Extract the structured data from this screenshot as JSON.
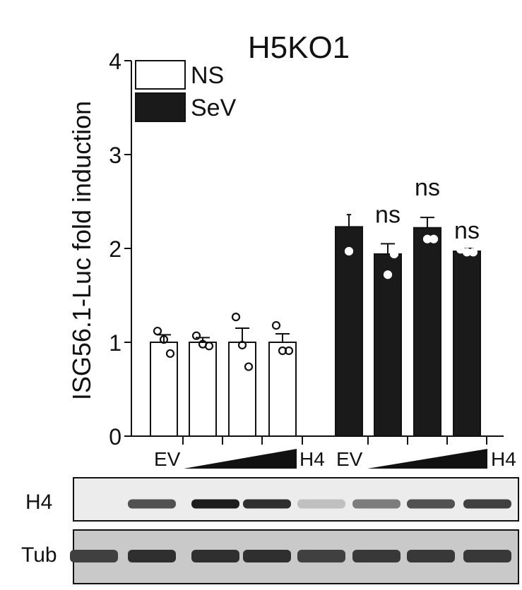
{
  "chart_data": {
    "type": "bar",
    "title": "H5KO1",
    "ylabel": "ISG56.1-Luc fold induction",
    "ylim": [
      0,
      4
    ],
    "yticks": [
      0,
      1,
      2,
      3,
      4
    ],
    "groups": [
      {
        "first_label": "EV",
        "wedge_label": "H4"
      },
      {
        "first_label": "EV",
        "wedge_label": "H4"
      }
    ],
    "legend": {
      "position": "top-left"
    },
    "series": [
      {
        "name": "NS",
        "color": "#ffffff",
        "values": [
          1.0,
          1.0,
          1.0,
          1.0
        ],
        "errors": [
          0.08,
          0.05,
          0.15,
          0.09
        ],
        "points": [
          [
            1.12,
            0.88,
            1.03
          ],
          [
            1.07,
            0.96,
            0.98
          ],
          [
            1.27,
            0.74,
            0.97
          ],
          [
            1.18,
            0.91,
            0.91
          ]
        ],
        "annotations": [
          "",
          "",
          "",
          ""
        ]
      },
      {
        "name": "SeV",
        "color": "#1a1a1a",
        "values": [
          2.23,
          1.94,
          2.22,
          1.97
        ],
        "errors": [
          0.13,
          0.11,
          0.11,
          0.03
        ],
        "points": [
          [
            2.37,
            2.37,
            1.97
          ],
          [
            2.17,
            1.94,
            1.72
          ],
          [
            2.46,
            2.1,
            2.1
          ],
          [
            1.99,
            1.96,
            1.96
          ]
        ],
        "annotations": [
          "",
          "ns",
          "ns",
          "ns"
        ]
      }
    ]
  },
  "blot": {
    "rows": [
      {
        "label": "H4",
        "bands": [
          0.0,
          0.7,
          1.0,
          0.9,
          0.05,
          0.45,
          0.7,
          0.8
        ]
      },
      {
        "label": "Tub",
        "bands": [
          0.8,
          0.9,
          0.9,
          0.9,
          0.8,
          0.85,
          0.85,
          0.85
        ]
      }
    ]
  }
}
